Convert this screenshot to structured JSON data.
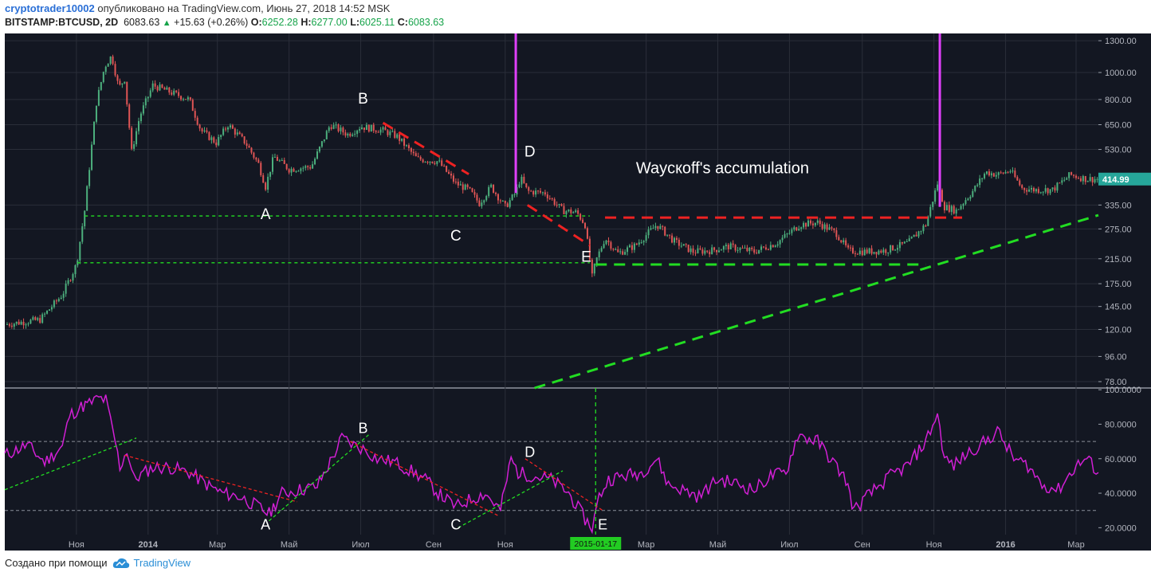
{
  "header": {
    "author": "cryptotrader10002",
    "published_text": "опубликовано на TradingView.com, Июнь 27, 2018 14:52 MSK",
    "symbol": "BITSTAMP:BTCUSD, 2D",
    "last": "6083.63",
    "change": "+15.63 (+0.26%)",
    "o_label": "O:",
    "o_value": "6252.28",
    "h_label": "H:",
    "h_value": "6277.00",
    "l_label": "L:",
    "l_value": "6025.11",
    "c_label": "C:",
    "c_value": "6083.63"
  },
  "footer": {
    "created_with": "Создано при помощи",
    "brand": "TradingView"
  },
  "colors": {
    "bg": "#131722",
    "grid": "#2a2e39",
    "up": "#4caf7d",
    "down": "#e05555",
    "osc": "#d11fd4",
    "green": "#22dd22",
    "red": "#ee2222",
    "magenta": "#e040fb",
    "price_tag": "#26a69a",
    "date_tag": "#22cc22"
  },
  "chart_data": [
    {
      "type": "candlestick",
      "title": "",
      "scale": "log",
      "y_ticks": [
        "1300.00",
        "1000.00",
        "800.00",
        "650.00",
        "530.00",
        "414.99",
        "335.00",
        "275.00",
        "215.00",
        "175.00",
        "145.00",
        "120.00",
        "96.00",
        "78.00"
      ],
      "y_tick_values": [
        1300,
        1000,
        800,
        650,
        530,
        335,
        275,
        215,
        175,
        145,
        120,
        96,
        78
      ],
      "last_price_tag": "414.99",
      "x_ticks": [
        "Ноя",
        "2014",
        "Мар",
        "Май",
        "Июл",
        "Сен",
        "Ноя",
        "Мар",
        "Май",
        "Июл",
        "Сен",
        "Ноя",
        "2016",
        "Мар"
      ],
      "x_range": [
        "2013-09-01",
        "2016-03-20"
      ],
      "y_range": [
        74,
        1380
      ],
      "close_path": [
        [
          "2013-09-01",
          125
        ],
        [
          "2013-10-01",
          130
        ],
        [
          "2013-10-20",
          160
        ],
        [
          "2013-11-01",
          205
        ],
        [
          "2013-11-08",
          320
        ],
        [
          "2013-11-18",
          780
        ],
        [
          "2013-11-25",
          1050
        ],
        [
          "2013-12-01",
          1150
        ],
        [
          "2013-12-07",
          880
        ],
        [
          "2013-12-12",
          950
        ],
        [
          "2013-12-18",
          520
        ],
        [
          "2013-12-25",
          700
        ],
        [
          "2014-01-05",
          900
        ],
        [
          "2014-01-20",
          850
        ],
        [
          "2014-02-05",
          800
        ],
        [
          "2014-02-15",
          620
        ],
        [
          "2014-02-28",
          560
        ],
        [
          "2014-03-10",
          650
        ],
        [
          "2014-03-25",
          560
        ],
        [
          "2014-04-05",
          470
        ],
        [
          "2014-04-11",
          390
        ],
        [
          "2014-04-18",
          500
        ],
        [
          "2014-05-01",
          450
        ],
        [
          "2014-05-20",
          460
        ],
        [
          "2014-06-05",
          650
        ],
        [
          "2014-06-20",
          600
        ],
        [
          "2014-07-01",
          640
        ],
        [
          "2014-07-20",
          620
        ],
        [
          "2014-08-01",
          590
        ],
        [
          "2014-08-18",
          490
        ],
        [
          "2014-09-05",
          480
        ],
        [
          "2014-09-20",
          400
        ],
        [
          "2014-10-01",
          380
        ],
        [
          "2014-10-10",
          340
        ],
        [
          "2014-10-20",
          390
        ],
        [
          "2014-11-01",
          330
        ],
        [
          "2014-11-10",
          370
        ],
        [
          "2014-11-14",
          420
        ],
        [
          "2014-11-20",
          375
        ],
        [
          "2014-12-05",
          370
        ],
        [
          "2014-12-20",
          320
        ],
        [
          "2015-01-01",
          315
        ],
        [
          "2015-01-08",
          285
        ],
        [
          "2015-01-14",
          185
        ],
        [
          "2015-01-17",
          210
        ],
        [
          "2015-01-25",
          255
        ],
        [
          "2015-02-05",
          225
        ],
        [
          "2015-02-20",
          240
        ],
        [
          "2015-03-10",
          285
        ],
        [
          "2015-03-25",
          248
        ],
        [
          "2015-04-10",
          228
        ],
        [
          "2015-04-25",
          230
        ],
        [
          "2015-05-10",
          238
        ],
        [
          "2015-06-01",
          228
        ],
        [
          "2015-06-20",
          245
        ],
        [
          "2015-07-10",
          285
        ],
        [
          "2015-07-25",
          290
        ],
        [
          "2015-08-10",
          265
        ],
        [
          "2015-08-20",
          230
        ],
        [
          "2015-09-01",
          228
        ],
        [
          "2015-09-20",
          230
        ],
        [
          "2015-10-10",
          245
        ],
        [
          "2015-10-25",
          285
        ],
        [
          "2015-11-04",
          400
        ],
        [
          "2015-11-10",
          330
        ],
        [
          "2015-11-20",
          320
        ],
        [
          "2015-12-05",
          380
        ],
        [
          "2015-12-15",
          440
        ],
        [
          "2015-12-25",
          430
        ],
        [
          "2016-01-05",
          445
        ],
        [
          "2016-01-15",
          385
        ],
        [
          "2016-01-25",
          380
        ],
        [
          "2016-02-10",
          380
        ],
        [
          "2016-02-25",
          430
        ],
        [
          "2016-03-10",
          415
        ],
        [
          "2016-03-20",
          414.99
        ]
      ],
      "annotations": [
        {
          "text": "A",
          "x": "2014-04-11",
          "y": 298
        },
        {
          "text": "B",
          "x": "2014-07-03",
          "y": 775
        },
        {
          "text": "C",
          "x": "2014-09-20",
          "y": 250
        },
        {
          "text": "D",
          "x": "2014-11-22",
          "y": 500
        },
        {
          "text": "E",
          "x": "2015-01-09",
          "y": 210
        },
        {
          "text": "Waycкoff's accumulation",
          "x": "2015-05-05",
          "y": 435
        }
      ],
      "lines": [
        {
          "color": "green",
          "style": "dotted",
          "y": 306,
          "from": "2013-11-08",
          "to": "2015-01-12"
        },
        {
          "color": "green",
          "style": "dotted",
          "y": 208,
          "from": "2013-11-02",
          "to": "2015-01-12"
        },
        {
          "color": "green",
          "style": "dashed",
          "y": 205,
          "from": "2015-01-17",
          "to": "2015-10-25"
        },
        {
          "color": "green",
          "style": "dashed",
          "points": [
            [
              "2014-11-26",
              74
            ],
            [
              "2016-03-20",
              308
            ]
          ]
        },
        {
          "color": "red",
          "style": "dashed",
          "y": 302,
          "from": "2015-01-25",
          "to": "2015-11-25"
        },
        {
          "color": "red",
          "style": "dashed",
          "points": [
            [
              "2014-07-20",
              660
            ],
            [
              "2014-10-01",
              432
            ]
          ]
        },
        {
          "color": "red",
          "style": "dashed",
          "points": [
            [
              "2014-11-20",
              335
            ],
            [
              "2015-01-12",
              240
            ]
          ]
        }
      ],
      "vertical_markers": [
        "2014-11-10",
        "2015-11-06"
      ]
    },
    {
      "type": "line",
      "title": "",
      "y_ticks": [
        "100.0000",
        "80.0000",
        "60.0000",
        "40.0000",
        "20.0000"
      ],
      "y_tick_values": [
        100,
        80,
        60,
        40,
        20
      ],
      "y_range": [
        16,
        101
      ],
      "levels": [
        70,
        30
      ],
      "cursor_date_label": "2015-01-17",
      "x": [
        "2013-09-01",
        "2013-09-20",
        "2013-10-05",
        "2013-10-20",
        "2013-10-26",
        "2013-11-05",
        "2013-11-12",
        "2013-11-20",
        "2013-11-26",
        "2013-12-04",
        "2013-12-08",
        "2013-12-14",
        "2013-12-20",
        "2014-01-05",
        "2014-01-20",
        "2014-02-05",
        "2014-02-20",
        "2014-03-05",
        "2014-03-20",
        "2014-04-05",
        "2014-04-14",
        "2014-04-25",
        "2014-05-10",
        "2014-05-25",
        "2014-06-05",
        "2014-06-15",
        "2014-06-25",
        "2014-07-05",
        "2014-07-15",
        "2014-07-30",
        "2014-08-15",
        "2014-08-25",
        "2014-09-05",
        "2014-09-20",
        "2014-10-01",
        "2014-10-15",
        "2014-10-28",
        "2014-11-06",
        "2014-11-12",
        "2014-11-25",
        "2014-12-10",
        "2014-12-25",
        "2015-01-08",
        "2015-01-14",
        "2015-01-20",
        "2015-01-28",
        "2015-02-10",
        "2015-02-25",
        "2015-03-10",
        "2015-03-20",
        "2015-04-01",
        "2015-04-15",
        "2015-05-01",
        "2015-05-15",
        "2015-06-01",
        "2015-06-15",
        "2015-06-28",
        "2015-07-08",
        "2015-07-16",
        "2015-07-25",
        "2015-08-05",
        "2015-08-18",
        "2015-08-25",
        "2015-09-05",
        "2015-09-25",
        "2015-10-10",
        "2015-10-25",
        "2015-11-04",
        "2015-11-10",
        "2015-11-18",
        "2015-12-01",
        "2015-12-15",
        "2015-12-25",
        "2016-01-08",
        "2016-01-20",
        "2016-02-01",
        "2016-02-15",
        "2016-03-01",
        "2016-03-10",
        "2016-03-20"
      ],
      "values": [
        62,
        68,
        58,
        67,
        85,
        90,
        92,
        95,
        94,
        70,
        55,
        65,
        48,
        55,
        55,
        52,
        45,
        40,
        38,
        32,
        28,
        40,
        42,
        44,
        58,
        72,
        68,
        65,
        60,
        58,
        52,
        48,
        40,
        32,
        36,
        40,
        30,
        60,
        52,
        50,
        48,
        40,
        25,
        20,
        38,
        48,
        50,
        52,
        60,
        45,
        42,
        38,
        48,
        46,
        42,
        50,
        52,
        74,
        72,
        70,
        60,
        48,
        30,
        38,
        50,
        56,
        70,
        86,
        60,
        56,
        64,
        70,
        76,
        60,
        56,
        45,
        42,
        56,
        60,
        52
      ]
    }
  ]
}
